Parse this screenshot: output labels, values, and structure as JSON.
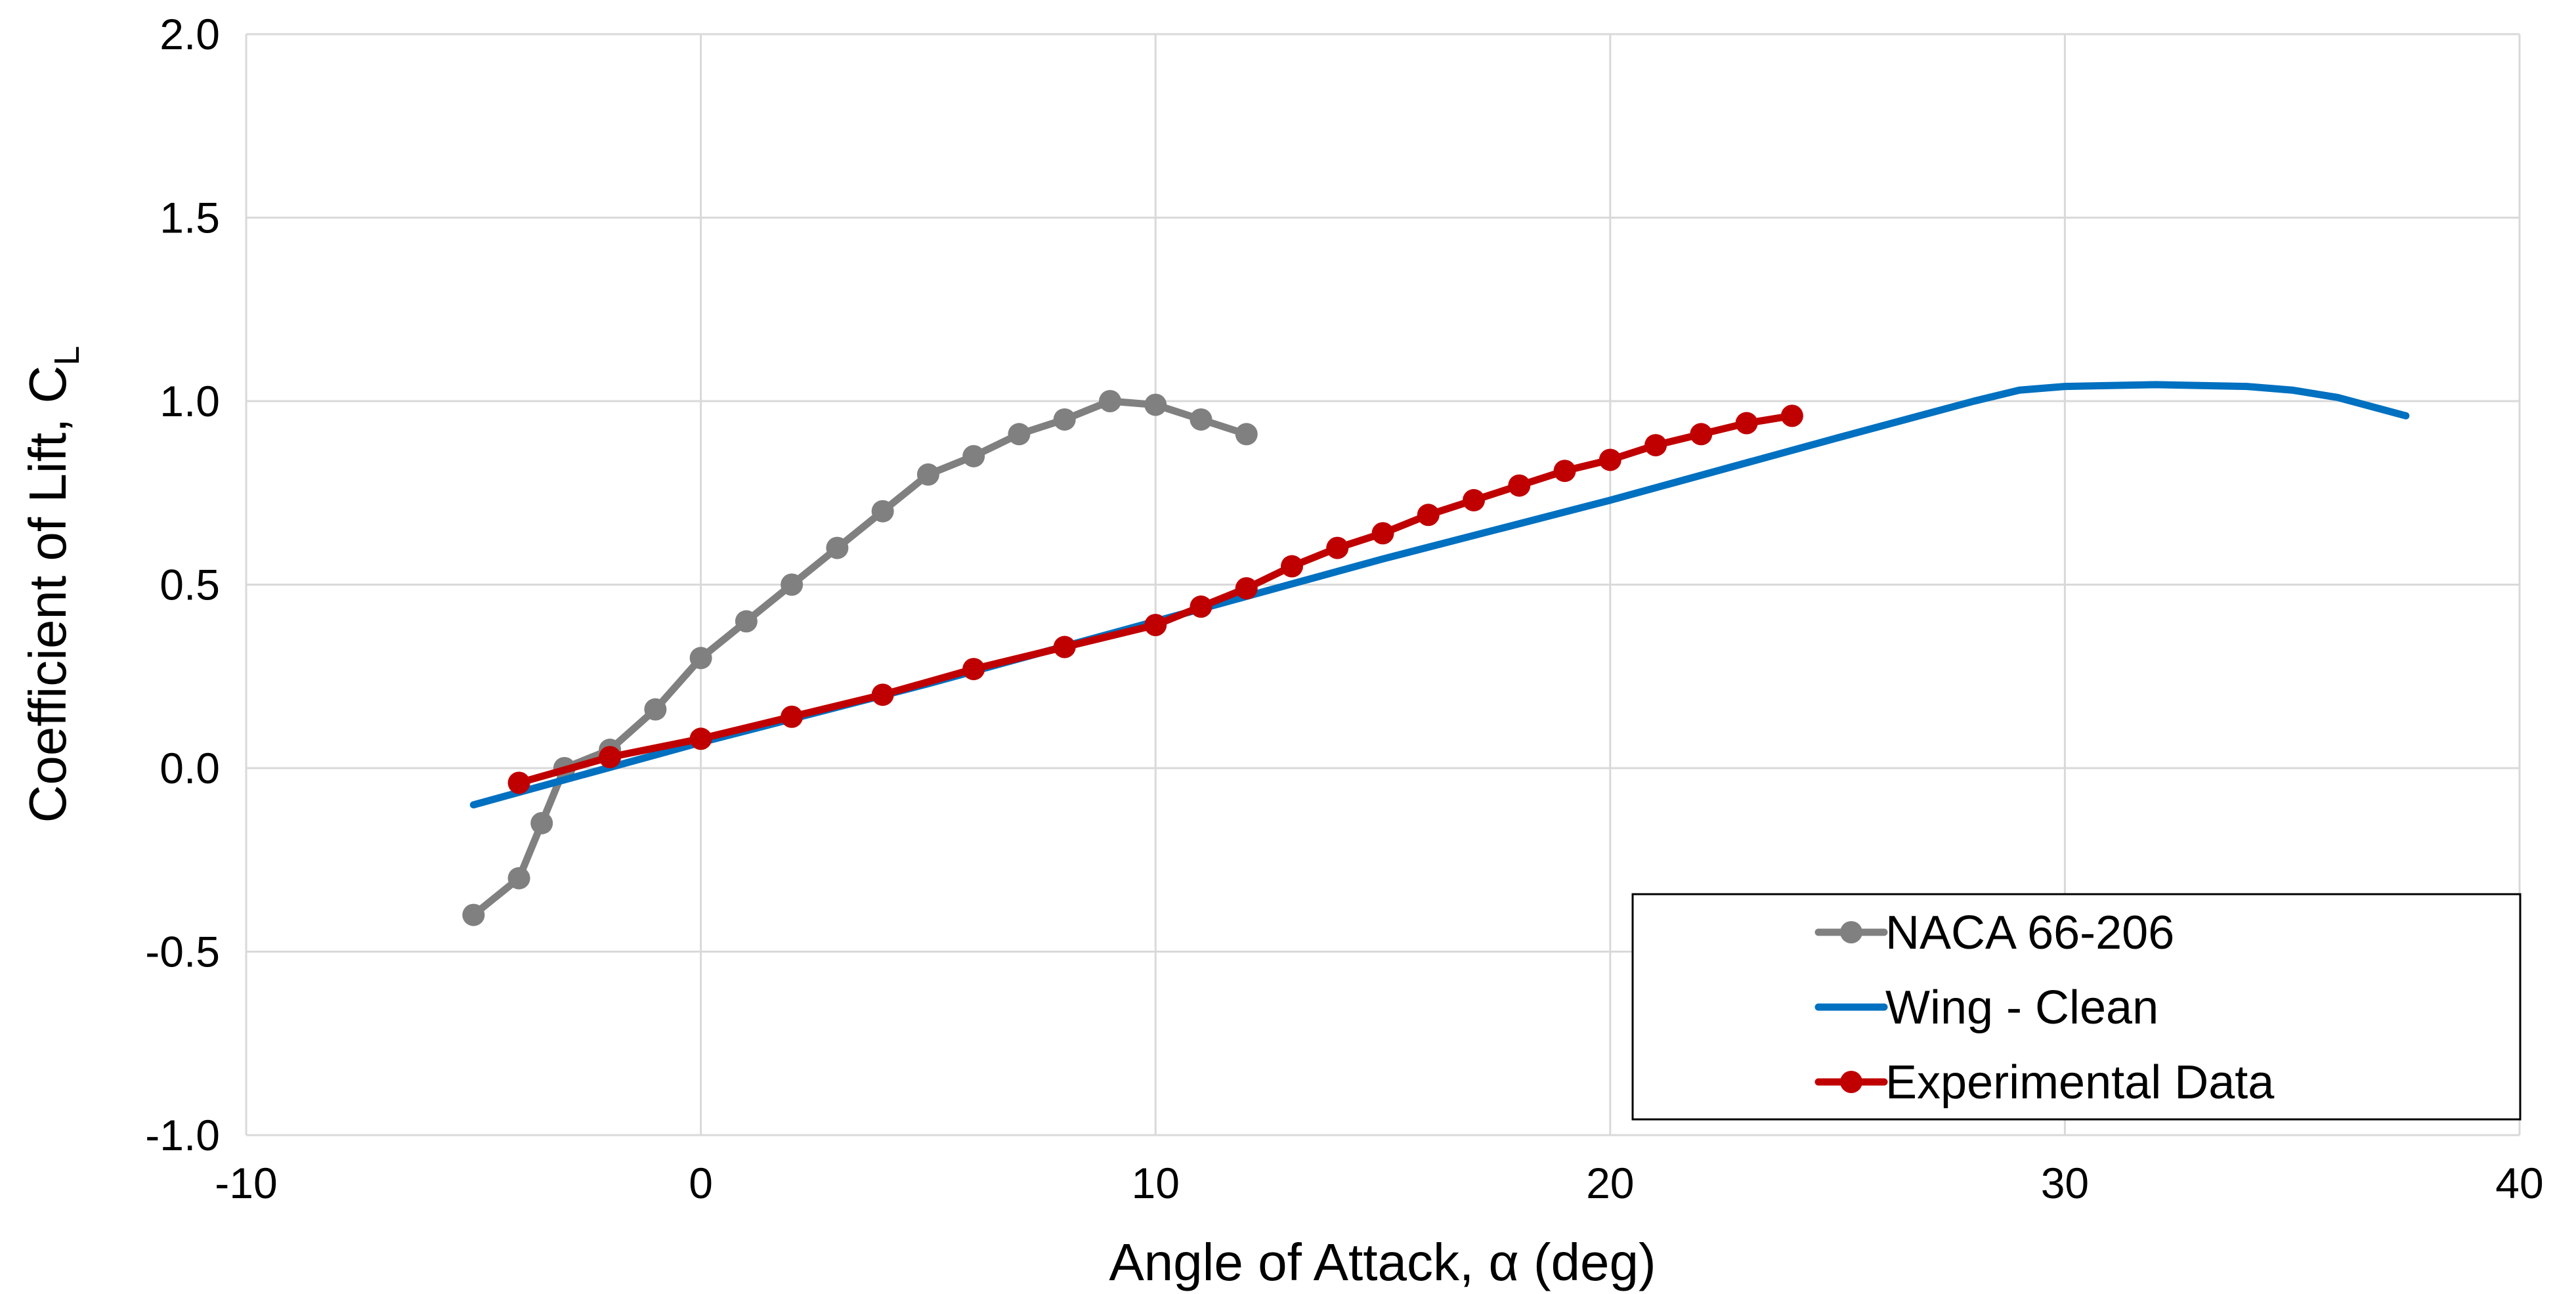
{
  "chart_data": {
    "type": "line",
    "title": "",
    "xlabel": "Angle of Attack, α (deg)",
    "ylabel_main": "Coefficient of Lift, C",
    "ylabel_sub": "L",
    "xlim": [
      -10,
      40
    ],
    "ylim": [
      -1.0,
      2.0
    ],
    "x_ticks": [
      -10,
      0,
      10,
      20,
      30,
      40
    ],
    "x_tick_labels": [
      "-10",
      "0",
      "10",
      "20",
      "30",
      "40"
    ],
    "y_ticks": [
      -1.0,
      -0.5,
      0.0,
      0.5,
      1.0,
      1.5,
      2.0
    ],
    "y_tick_labels": [
      "-1.0",
      "-0.5",
      "0.0",
      "0.5",
      "1.0",
      "1.5",
      "2.0"
    ],
    "grid": true,
    "legend_position": "bottom-right",
    "series": [
      {
        "name": "NACA 66-206",
        "color": "#808080",
        "markers": true,
        "x": [
          -5,
          -4,
          -3.5,
          -3,
          -2,
          -1,
          0,
          1,
          2,
          3,
          4,
          5,
          6,
          7,
          8,
          9,
          10,
          11,
          12
        ],
        "y": [
          -0.4,
          -0.3,
          -0.15,
          0.0,
          0.05,
          0.16,
          0.3,
          0.4,
          0.5,
          0.6,
          0.7,
          0.8,
          0.85,
          0.91,
          0.95,
          1.0,
          0.99,
          0.95,
          0.91
        ]
      },
      {
        "name": "Wing - Clean",
        "color": "#0070C0",
        "markers": false,
        "x": [
          -5,
          0,
          5,
          10,
          15,
          20,
          25,
          28,
          29,
          30,
          32,
          34,
          35,
          36,
          37.5
        ],
        "y": [
          -0.1,
          0.07,
          0.23,
          0.4,
          0.57,
          0.73,
          0.9,
          1.0,
          1.03,
          1.04,
          1.045,
          1.04,
          1.03,
          1.01,
          0.96
        ]
      },
      {
        "name": "Experimental Data",
        "color": "#C00000",
        "markers": true,
        "x": [
          -4,
          -2,
          0,
          2,
          4,
          6,
          8,
          10,
          11,
          12,
          13,
          14,
          15,
          16,
          17,
          18,
          19,
          20,
          21,
          22,
          23,
          24
        ],
        "y": [
          -0.04,
          0.03,
          0.08,
          0.14,
          0.2,
          0.27,
          0.33,
          0.39,
          0.44,
          0.49,
          0.55,
          0.6,
          0.64,
          0.69,
          0.73,
          0.77,
          0.81,
          0.84,
          0.88,
          0.91,
          0.94,
          0.96
        ]
      }
    ]
  }
}
